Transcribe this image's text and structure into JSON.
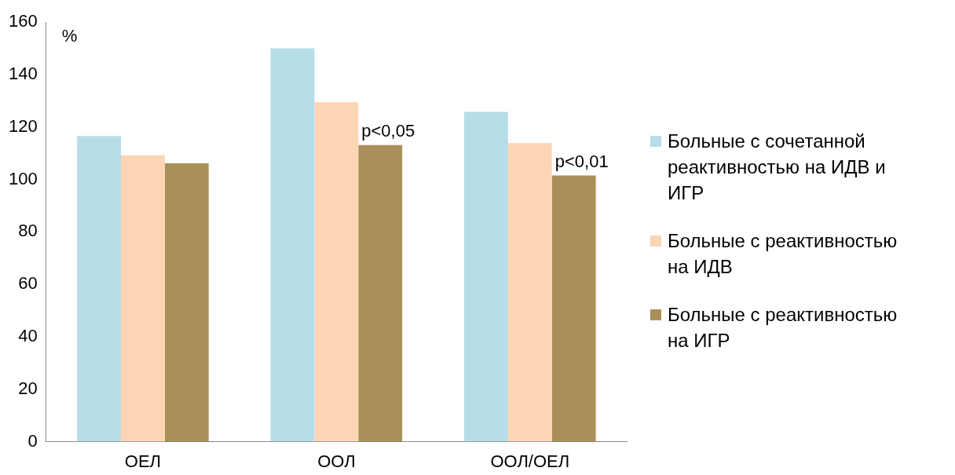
{
  "chart_data": {
    "type": "bar",
    "ylabel": "%",
    "categories": [
      "ОЕЛ",
      "ООЛ",
      "ООЛ/ОЕЛ"
    ],
    "series": [
      {
        "name": "Больные с сочетанной реактивностью на ИДВ и ИГР",
        "color": "#b7dde8",
        "values": [
          116.5,
          150,
          125.7
        ]
      },
      {
        "name": "Больные с реактивностью на ИДВ",
        "color": "#fcd5b5",
        "values": [
          109.2,
          129.4,
          113.8
        ]
      },
      {
        "name": "Больные с реактивностью на ИГР",
        "color": "#a89058",
        "values": [
          106.1,
          113.1,
          101.5
        ]
      }
    ],
    "ylim": [
      0,
      160
    ],
    "yticks": [
      0,
      20,
      40,
      60,
      80,
      100,
      120,
      140,
      160
    ],
    "grid": false,
    "legend": "right",
    "annotations": [
      "p<0,05",
      "p<0,01"
    ]
  }
}
